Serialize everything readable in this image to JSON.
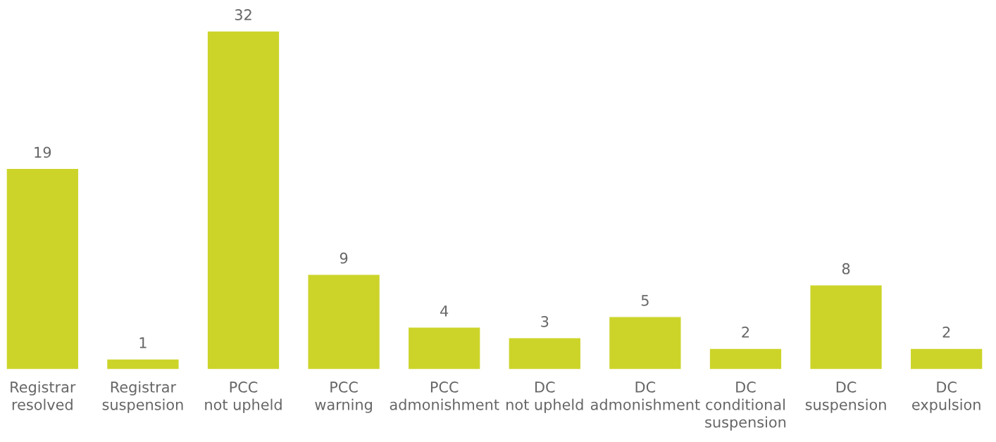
{
  "chart_data": {
    "type": "bar",
    "categories": [
      "Registrar\nresolved",
      "Registrar\nsuspension",
      "PCC\nnot upheld",
      "PCC\nwarning",
      "PCC\nadmonishment",
      "DC\nnot upheld",
      "DC\nadmonishment",
      "DC\nconditional\nsuspension",
      "DC\nsuspension",
      "DC\nexpulsion"
    ],
    "values": [
      19,
      1,
      32,
      9,
      4,
      3,
      5,
      2,
      8,
      2
    ],
    "color": "#ccd42a",
    "data_labels": true
  }
}
